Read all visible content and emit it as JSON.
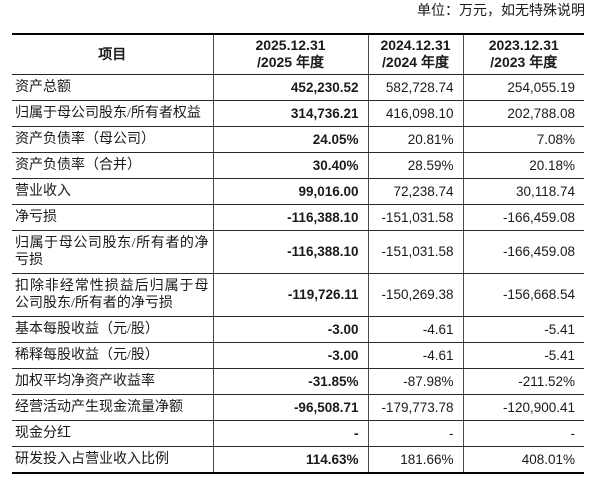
{
  "unit_note": "单位：万元，如无特殊说明",
  "table": {
    "item_header": "项目",
    "period_headers": [
      {
        "line1": "2025.12.31",
        "line2": "/2025 年度"
      },
      {
        "line1": "2024.12.31",
        "line2": "/2024 年度"
      },
      {
        "line1": "2023.12.31",
        "line2": "/2023 年度"
      }
    ],
    "rows": [
      {
        "label": "资产总额",
        "values": [
          "452,230.52",
          "582,728.74",
          "254,055.19"
        ]
      },
      {
        "label": "归属于母公司股东/所有者权益",
        "values": [
          "314,736.21",
          "416,098.10",
          "202,788.08"
        ]
      },
      {
        "label": "资产负债率（母公司）",
        "values": [
          "24.05%",
          "20.81%",
          "7.08%"
        ]
      },
      {
        "label": "资产负债率（合并）",
        "values": [
          "30.40%",
          "28.59%",
          "20.18%"
        ]
      },
      {
        "label": "营业收入",
        "values": [
          "99,016.00",
          "72,238.74",
          "30,118.74"
        ]
      },
      {
        "label": "净亏损",
        "values": [
          "-116,388.10",
          "-151,031.58",
          "-166,459.08"
        ]
      },
      {
        "label": "归属于母公司股东/所有者的净亏损",
        "values": [
          "-116,388.10",
          "-151,031.58",
          "-166,459.08"
        ]
      },
      {
        "label": "扣除非经常性损益后归属于母公司股东/所有者的净亏损",
        "values": [
          "-119,726.11",
          "-150,269.38",
          "-156,668.54"
        ]
      },
      {
        "label": "基本每股收益（元/股）",
        "values": [
          "-3.00",
          "-4.61",
          "-5.41"
        ]
      },
      {
        "label": "稀释每股收益（元/股）",
        "values": [
          "-3.00",
          "-4.61",
          "-5.41"
        ]
      },
      {
        "label": "加权平均净资产收益率",
        "values": [
          "-31.85%",
          "-87.98%",
          "-211.52%"
        ]
      },
      {
        "label": "经营活动产生现金流量净额",
        "values": [
          "-96,508.71",
          "-179,773.78",
          "-120,900.41"
        ]
      },
      {
        "label": "现金分红",
        "values": [
          "-",
          "-",
          "-"
        ]
      },
      {
        "label": "研发投入占营业收入比例",
        "values": [
          "114.63%",
          "181.66%",
          "408.01%"
        ]
      }
    ]
  },
  "colors": {
    "background": "#ffffff",
    "text": "#1a1a1a",
    "border_thick": "#000000",
    "border_thin": "#2a2a2a",
    "border_vertical": "#4a4a4a"
  }
}
